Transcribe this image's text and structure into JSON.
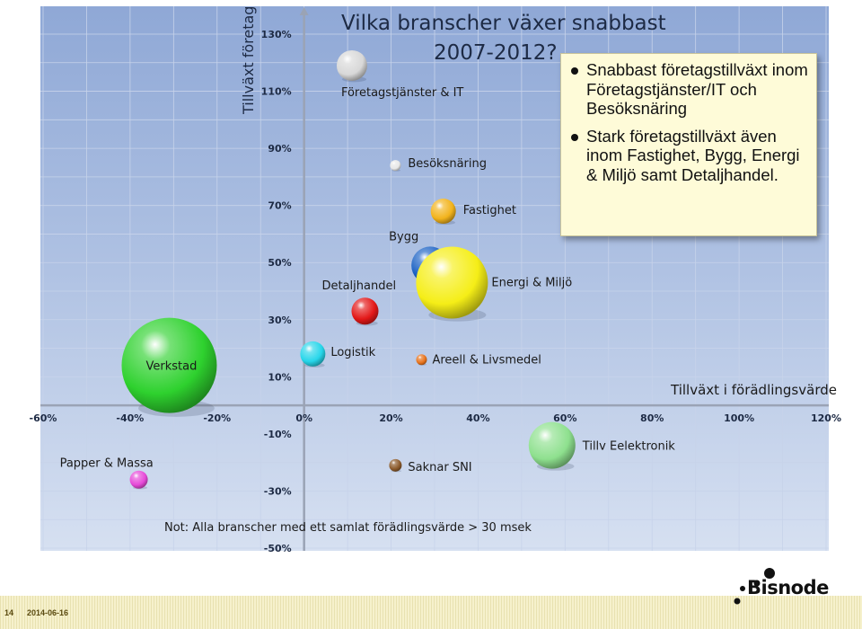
{
  "page": {
    "page_number": "14",
    "date": "2014-06-16",
    "logo_text": "Bisnode"
  },
  "callout": {
    "bullets": [
      "Snabbast företagstillväxt inom Företagstjänster/IT och Besöksnäring",
      "Stark företagstillväxt även inom Fastighet, Bygg, Energi & Miljö samt Detaljhandel."
    ]
  },
  "chart_data": {
    "type": "scatter",
    "title": "Vilka branscher växer snabbast 2007-2012?",
    "title_lines": [
      "Vilka branscher växer snabbast",
      "2007-2012?"
    ],
    "xlabel": "Tillväxt i förädlingsvärde",
    "ylabel": "Tillväxt företag",
    "xlim": [
      -60,
      120
    ],
    "ylim": [
      -50,
      130
    ],
    "x_ticks": [
      "-60%",
      "-40%",
      "-20%",
      "0%",
      "20%",
      "40%",
      "60%",
      "80%",
      "100%",
      "120%"
    ],
    "y_ticks": [
      "130%",
      "110%",
      "90%",
      "70%",
      "50%",
      "30%",
      "10%",
      "-10%",
      "-30%",
      "-50%"
    ],
    "grid": true,
    "note": "Not: Alla branscher med ett samlat förädlingsvärde > 30 msek",
    "points": [
      {
        "label": "Företagstjänster & IT",
        "x": 11,
        "y": 119,
        "size": 17,
        "color": "#d8d8d8"
      },
      {
        "label": "Besöksnäring",
        "x": 21,
        "y": 84,
        "size": 6,
        "color": "#e8e8e8"
      },
      {
        "label": "Fastighet",
        "x": 32,
        "y": 68,
        "size": 14,
        "color": "#f2b31c"
      },
      {
        "label": "Bygg",
        "x": 29,
        "y": 49,
        "size": 21,
        "color": "#1c62c4"
      },
      {
        "label": "Energi & Miljö",
        "x": 34,
        "y": 43,
        "size": 40,
        "color": "#f5ee17"
      },
      {
        "label": "Detaljhandel",
        "x": 14,
        "y": 33,
        "size": 15,
        "color": "#e31818"
      },
      {
        "label": "Logistik",
        "x": 2,
        "y": 18,
        "size": 14,
        "color": "#27d6ea"
      },
      {
        "label": "Areell & Livsmedel",
        "x": 27,
        "y": 16,
        "size": 6,
        "color": "#e8731c"
      },
      {
        "label": "Verkstad",
        "x": -31,
        "y": 14,
        "size": 53,
        "color": "#2ed12e"
      },
      {
        "label": "Tillv Eelektronik",
        "x": 57,
        "y": -14,
        "size": 26,
        "color": "#8ee08e"
      },
      {
        "label": "Saknar SNI",
        "x": 21,
        "y": -21,
        "size": 7,
        "color": "#8b5a2b"
      },
      {
        "label": "Papper & Massa",
        "x": -38,
        "y": -26,
        "size": 10,
        "color": "#e64ad8"
      }
    ]
  }
}
